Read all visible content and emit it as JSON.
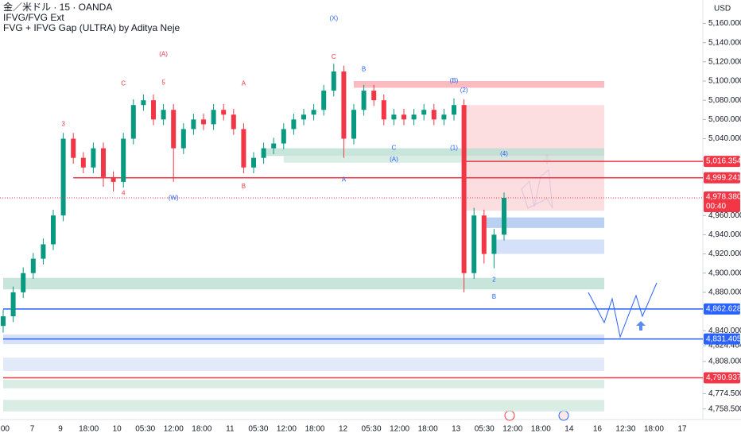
{
  "chart_data": {
    "type": "candlestick",
    "title": "金／米ドル · 15 · OANDA",
    "subtitle": "IFVG/FVG Ext",
    "indicator": "FVG + IFVG Gap (ULTRA) by Aditya Neje",
    "currency": "USD",
    "ylim": [
      4750,
      5172
    ],
    "yticks": [
      {
        "value": 5160,
        "label": "5,160.000"
      },
      {
        "value": 5140,
        "label": "5,140.000"
      },
      {
        "value": 5120,
        "label": "5,120.000"
      },
      {
        "value": 5100,
        "label": "5,100.000"
      },
      {
        "value": 5080,
        "label": "5,080.000"
      },
      {
        "value": 5060,
        "label": "5,060.000"
      },
      {
        "value": 5040,
        "label": "5,040.000"
      },
      {
        "value": 4960,
        "label": "4,960.000"
      },
      {
        "value": 4940,
        "label": "4,940.000"
      },
      {
        "value": 4920,
        "label": "4,920.000"
      },
      {
        "value": 4900,
        "label": "4,900.000"
      },
      {
        "value": 4880,
        "label": "4,880.000"
      },
      {
        "value": 4840,
        "label": "4,840.000"
      },
      {
        "value": 4824.404,
        "label": "4,824.404"
      },
      {
        "value": 4808,
        "label": "4,808.000"
      },
      {
        "value": 4774.5,
        "label": "4,774.500"
      },
      {
        "value": 4758.5,
        "label": "4,758.500"
      }
    ],
    "xticks": [
      ":00",
      "7",
      "9",
      "18:00",
      "10",
      "05:30",
      "12:00",
      "18:00",
      "11",
      "05:30",
      "12:00",
      "18:00",
      "12",
      "05:30",
      "12:00",
      "18:00",
      "13",
      "05:30",
      "12:00",
      "18:00",
      "14",
      "16",
      "12:30",
      "18:00",
      "17"
    ],
    "up_color": "#089981",
    "down_color": "#f23645",
    "candles": [
      [
        4845,
        4862,
        4838,
        4855
      ],
      [
        4855,
        4886,
        4849,
        4880
      ],
      [
        4880,
        4906,
        4874,
        4900
      ],
      [
        4900,
        4921,
        4894,
        4915
      ],
      [
        4915,
        4936,
        4909,
        4930
      ],
      [
        4930,
        4966,
        4924,
        4960
      ],
      [
        4960,
        5046,
        4954,
        5040
      ],
      [
        5040,
        5046,
        5014,
        5020
      ],
      [
        5020,
        5026,
        5004,
        5010
      ],
      [
        5010,
        5036,
        5004,
        5030
      ],
      [
        5030,
        5036,
        4990,
        5000
      ],
      [
        5000,
        5006,
        4985,
        4995
      ],
      [
        4995,
        5046,
        4989,
        5040
      ],
      [
        5040,
        5081,
        5034,
        5075
      ],
      [
        5075,
        5086,
        5069,
        5080
      ],
      [
        5080,
        5086,
        5054,
        5060
      ],
      [
        5060,
        5076,
        5054,
        5070
      ],
      [
        5070,
        5076,
        4995,
        5030
      ],
      [
        5030,
        5056,
        5024,
        5050
      ],
      [
        5050,
        5066,
        5044,
        5060
      ],
      [
        5060,
        5066,
        5049,
        5055
      ],
      [
        5055,
        5076,
        5049,
        5070
      ],
      [
        5070,
        5076,
        5059,
        5065
      ],
      [
        5065,
        5071,
        5044,
        5050
      ],
      [
        5050,
        5056,
        5004,
        5010
      ],
      [
        5010,
        5026,
        5004,
        5020
      ],
      [
        5020,
        5036,
        5014,
        5030
      ],
      [
        5030,
        5041,
        5024,
        5035
      ],
      [
        5035,
        5056,
        5029,
        5050
      ],
      [
        5050,
        5066,
        5044,
        5060
      ],
      [
        5060,
        5071,
        5054,
        5065
      ],
      [
        5065,
        5076,
        5059,
        5070
      ],
      [
        5070,
        5096,
        5064,
        5090
      ],
      [
        5090,
        5118,
        5084,
        5110
      ],
      [
        5110,
        5116,
        5020,
        5040
      ],
      [
        5040,
        5076,
        5034,
        5070
      ],
      [
        5070,
        5096,
        5064,
        5090
      ],
      [
        5090,
        5096,
        5074,
        5080
      ],
      [
        5080,
        5086,
        5054,
        5060
      ],
      [
        5060,
        5071,
        5054,
        5065
      ],
      [
        5065,
        5071,
        5054,
        5060
      ],
      [
        5060,
        5071,
        5054,
        5065
      ],
      [
        5065,
        5076,
        5059,
        5070
      ],
      [
        5070,
        5076,
        5054,
        5060
      ],
      [
        5060,
        5071,
        5054,
        5065
      ],
      [
        5065,
        5082,
        5059,
        5075
      ],
      [
        5075,
        5081,
        4880,
        4900
      ],
      [
        4900,
        4968,
        4894,
        4960
      ],
      [
        4960,
        4966,
        4910,
        4920
      ],
      [
        4920,
        4946,
        4905,
        4940
      ],
      [
        4940,
        4984,
        4934,
        4978.38
      ]
    ],
    "zones": [
      {
        "from": 5100,
        "to": 5093,
        "start": 35,
        "color": "#f7a9b0"
      },
      {
        "from": 5075,
        "to": 4965,
        "start": 46,
        "color": "#fbd5d8"
      },
      {
        "from": 5030,
        "to": 5022,
        "start": 26,
        "color": "#b9dfd2"
      },
      {
        "from": 5022,
        "to": 5015,
        "start": 28,
        "color": "#cfe9df"
      },
      {
        "from": 4895,
        "to": 4883,
        "start": 0,
        "color": "#b9dfd2"
      },
      {
        "from": 4958,
        "to": 4947,
        "start": 48,
        "color": "#a9c4ee"
      },
      {
        "from": 4935,
        "to": 4920,
        "start": 49,
        "color": "#c9d9f6"
      },
      {
        "from": 4836,
        "to": 4826,
        "start": 0,
        "color": "#c9d9f6"
      },
      {
        "from": 4812,
        "to": 4798,
        "start": 0,
        "color": "#dbe5f8"
      },
      {
        "from": 4789,
        "to": 4780,
        "start": 0,
        "color": "#cfe9df"
      },
      {
        "from": 4768,
        "to": 4756,
        "start": 0,
        "color": "#cfe9df"
      }
    ],
    "levels": [
      {
        "value": 5016.354,
        "label": "5,016.354",
        "start": 46,
        "color": "#f23645"
      },
      {
        "value": 4999.241,
        "label": "4,999.241",
        "start": 7,
        "color": "#f23645"
      },
      {
        "value": 4862.628,
        "label": "4,862.628",
        "start": 0,
        "color": "#2962ff"
      },
      {
        "value": 4831.405,
        "label": "4,831.405",
        "start": 0,
        "color": "#2962ff"
      },
      {
        "value": 4790.937,
        "label": "4,790.937",
        "start": 0,
        "color": "#f23645"
      }
    ],
    "last_price": {
      "value": 4978.38,
      "label": "4,978.380",
      "countdown": "00:40",
      "color": "#f23645"
    },
    "annotations": [
      {
        "text": "(X)",
        "price": 5165,
        "index": 33,
        "color": "#2962ff"
      },
      {
        "text": "C",
        "price": 5125,
        "index": 33,
        "color": "#f23645"
      },
      {
        "text": "B",
        "price": 5112,
        "index": 36,
        "color": "#2962ff"
      },
      {
        "text": "(A)",
        "price": 5128,
        "index": 16,
        "color": "#f23645"
      },
      {
        "text": "C",
        "price": 5097,
        "index": 12,
        "color": "#f23645"
      },
      {
        "text": "5",
        "price": 5098,
        "index": 16,
        "color": "#f23645"
      },
      {
        "text": "A",
        "price": 5097,
        "index": 24,
        "color": "#f23645"
      },
      {
        "text": "3",
        "price": 5055,
        "index": 6,
        "color": "#f23645"
      },
      {
        "text": "4",
        "price": 4983,
        "index": 12,
        "color": "#f23645"
      },
      {
        "text": "B",
        "price": 4990,
        "index": 24,
        "color": "#f23645"
      },
      {
        "text": "(W)",
        "price": 4978,
        "index": 17,
        "color": "#2962ff"
      },
      {
        "text": "(B)",
        "price": 5100,
        "index": 45,
        "color": "#2962ff"
      },
      {
        "text": "(2)",
        "price": 5090,
        "index": 46,
        "color": "#2962ff"
      },
      {
        "text": "C",
        "price": 5030,
        "index": 39,
        "color": "#2962ff"
      },
      {
        "text": "(1)",
        "price": 5030,
        "index": 45,
        "color": "#2962ff"
      },
      {
        "text": "(A)",
        "price": 5018,
        "index": 39,
        "color": "#2962ff"
      },
      {
        "text": "A",
        "price": 4997,
        "index": 34,
        "color": "#2962ff"
      },
      {
        "text": "(4)",
        "price": 5024,
        "index": 50,
        "color": "#2962ff"
      },
      {
        "text": "B",
        "price": 4875,
        "index": 49,
        "color": "#2962ff"
      },
      {
        "text": "2",
        "price": 4893,
        "index": 49,
        "color": "#2962ff"
      }
    ]
  }
}
